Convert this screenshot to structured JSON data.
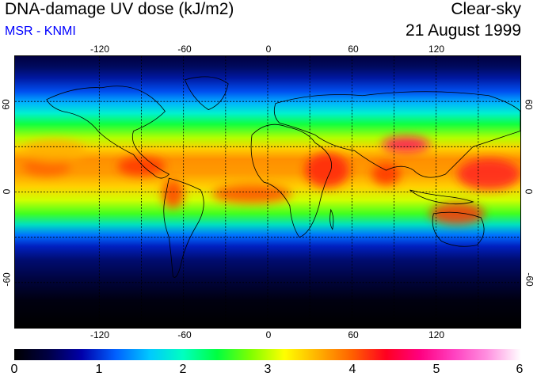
{
  "header": {
    "title": "DNA-damage UV dose (kJ/m2)",
    "subtitle": "MSR - KNMI",
    "condition": "Clear-sky",
    "date": "21 August 1999"
  },
  "colors": {
    "subtitle": "#0000ff",
    "scale": [
      "#000000",
      "#000044",
      "#0000aa",
      "#0060ff",
      "#00c8ff",
      "#00ffc0",
      "#00ff40",
      "#80ff00",
      "#ffff00",
      "#ffb000",
      "#ff6000",
      "#ff0020",
      "#ff0080",
      "#ff40c0",
      "#ff90e0",
      "#ffffff"
    ]
  },
  "map": {
    "projection": "equirectangular",
    "lon_ticks": [
      "-120",
      "-60",
      "0",
      "60",
      "120"
    ],
    "lat_ticks": [
      "60",
      "0",
      "-60"
    ],
    "gridlines": "dotted",
    "grid_lon": [
      -120,
      -90,
      -60,
      -30,
      0,
      30,
      60,
      90,
      120,
      150
    ],
    "grid_lat": [
      60,
      30,
      0,
      -30,
      -60
    ]
  },
  "colorbar": {
    "min": 0,
    "max": 6,
    "labels": [
      "0",
      "1",
      "2",
      "3",
      "4",
      "5",
      "6"
    ]
  }
}
